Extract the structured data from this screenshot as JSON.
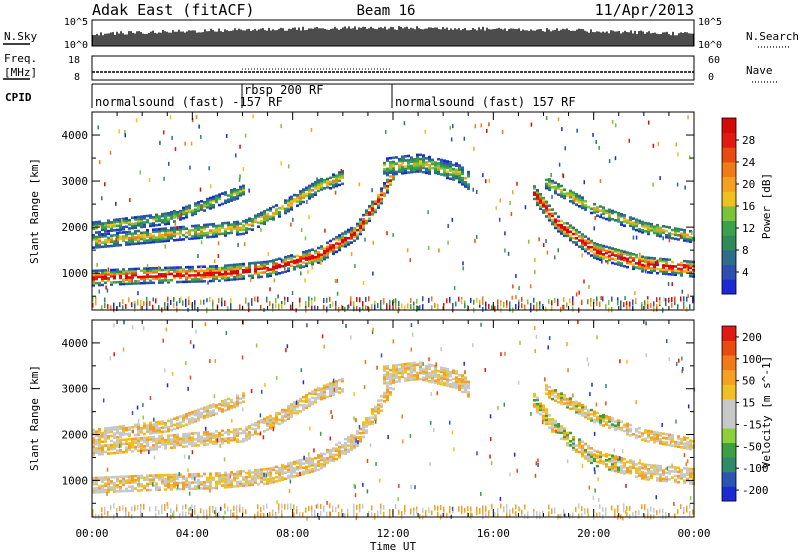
{
  "header": {
    "station": "Adak East (fitACF)",
    "beam": "Beam 16",
    "date": "11/Apr/2013"
  },
  "top_panels": {
    "nsky_label": "N.Sky",
    "nsearch_label": "N.Search",
    "nsky_ticks": [
      "10^5",
      "10^0"
    ],
    "nsearch_ticks": [
      "10^5",
      "10^0"
    ],
    "freq_label": "Freq.",
    "freq_unit": "[MHz]",
    "freq_ticks": [
      "18",
      "8"
    ],
    "nave_label": "Nave",
    "nave_ticks": [
      "60",
      "0"
    ],
    "cpid_label": "CPID",
    "cpid_segments": [
      {
        "label": "normalsound (fast) -157 RF",
        "start_hour": 0,
        "end_hour": 6
      },
      {
        "label": "rbsp 200 RF",
        "start_hour": 6,
        "end_hour": 12
      },
      {
        "label": "normalsound (fast) 157 RF",
        "start_hour": 12,
        "end_hour": 24
      }
    ]
  },
  "chart_data": [
    {
      "type": "heatmap",
      "name": "power",
      "ylabel": "Slant Range [km]",
      "x_ticks": [
        "00:00",
        "04:00",
        "08:00",
        "12:00",
        "16:00",
        "20:00",
        "00:00"
      ],
      "xlim_hours": [
        0,
        24
      ],
      "ylim_km": [
        200,
        4500
      ],
      "y_ticks": [
        1000,
        2000,
        3000,
        4000
      ],
      "colorbar": {
        "label": "Power [dB]",
        "ticks": [
          "4",
          "8",
          "12",
          "16",
          "20",
          "24",
          "28"
        ],
        "colors": [
          "#1a2bd6",
          "#2d4fb0",
          "#2c6e8a",
          "#2f8a5a",
          "#3aa04a",
          "#7cc23a",
          "#f0c020",
          "#f5a020",
          "#f07a18",
          "#e84a10",
          "#e01a10",
          "#d40a08"
        ]
      }
    },
    {
      "type": "heatmap",
      "name": "velocity",
      "xlabel": "Time UT",
      "ylabel": "Slant Range [km]",
      "x_ticks": [
        "00:00",
        "04:00",
        "08:00",
        "12:00",
        "16:00",
        "20:00",
        "00:00"
      ],
      "xlim_hours": [
        0,
        24
      ],
      "ylim_km": [
        200,
        4500
      ],
      "y_ticks": [
        1000,
        2000,
        3000,
        4000
      ],
      "colorbar": {
        "label": "Velocity [m s^-1]",
        "ticks": [
          "200",
          "100",
          "50",
          "15",
          "-15",
          "-50",
          "-100",
          "-200"
        ],
        "colors": [
          "#1a2bd6",
          "#2a55b0",
          "#2f8a6a",
          "#3aa040",
          "#8ccf3a",
          "#c8c8c8",
          "#c8c8c8",
          "#f0c020",
          "#f5a020",
          "#f07a18",
          "#e84a10",
          "#e01a10"
        ]
      }
    }
  ]
}
